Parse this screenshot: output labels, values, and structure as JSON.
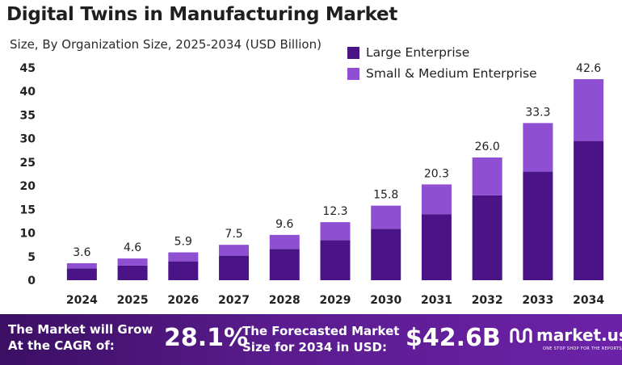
{
  "header": {
    "title": "Digital Twins in Manufacturing Market",
    "subtitle": "Size, By Organization Size, 2025-2034 (USD Billion)"
  },
  "colors": {
    "large": "#4a1486",
    "small": "#8f4fd3"
  },
  "chart_data": {
    "type": "bar",
    "stacked": true,
    "categories": [
      "2024",
      "2025",
      "2026",
      "2027",
      "2028",
      "2029",
      "2030",
      "2031",
      "2032",
      "2033",
      "2034"
    ],
    "series": [
      {
        "name": "Large Enterprise",
        "values": [
          2.5,
          3.1,
          4.0,
          5.2,
          6.6,
          8.5,
          10.9,
          14.0,
          18.0,
          23.0,
          29.5
        ]
      },
      {
        "name": "Small & Medium Enterprise",
        "values": [
          1.1,
          1.5,
          1.9,
          2.3,
          3.0,
          3.8,
          4.9,
          6.3,
          8.0,
          10.3,
          13.1
        ]
      }
    ],
    "totals": [
      3.6,
      4.6,
      5.9,
      7.5,
      9.6,
      12.3,
      15.8,
      20.3,
      26.0,
      33.3,
      42.6
    ],
    "total_labels": [
      "3.6",
      "4.6",
      "5.9",
      "7.5",
      "9.6",
      "12.3",
      "15.8",
      "20.3",
      "26.0",
      "33.3",
      "42.6"
    ],
    "yticks": [
      0,
      5,
      10,
      15,
      20,
      25,
      30,
      35,
      40,
      45
    ],
    "ylim": [
      0,
      45
    ],
    "xlabel": "",
    "ylabel": "",
    "grid": false,
    "legend_position": "top-right"
  },
  "footer": {
    "grow_text": "The Market will Grow At the CAGR of:",
    "cagr": "28.1%",
    "forecast_text": "The Forecasted Market Size for 2034 in USD:",
    "market_size": "$42.6B",
    "logo_text": "market.us",
    "logo_tagline": "ONE STOP SHOP FOR THE REPORTS"
  }
}
